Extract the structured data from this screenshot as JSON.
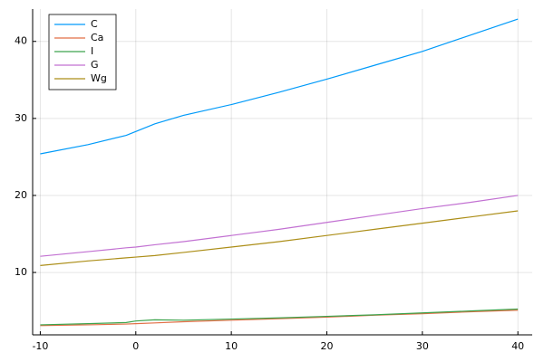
{
  "chart_data": {
    "type": "line",
    "x": [
      -10,
      -5,
      -1,
      0,
      2,
      5,
      10,
      15,
      20,
      25,
      30,
      35,
      40
    ],
    "series": [
      {
        "name": "C",
        "color": "#009af9",
        "values": [
          25.4,
          26.6,
          27.8,
          28.3,
          29.3,
          30.4,
          31.8,
          33.4,
          35.1,
          36.9,
          38.7,
          40.8,
          42.9
        ]
      },
      {
        "name": "Ca",
        "color": "#e26f46",
        "values": [
          3.1,
          3.2,
          3.3,
          3.35,
          3.45,
          3.6,
          3.8,
          4.0,
          4.2,
          4.45,
          4.65,
          4.9,
          5.1
        ]
      },
      {
        "name": "I",
        "color": "#3da44d",
        "values": [
          3.2,
          3.35,
          3.5,
          3.7,
          3.85,
          3.8,
          3.95,
          4.1,
          4.3,
          4.5,
          4.75,
          5.0,
          5.25
        ]
      },
      {
        "name": "G",
        "color": "#c271d2",
        "values": [
          12.1,
          12.7,
          13.2,
          13.3,
          13.6,
          14.0,
          14.8,
          15.6,
          16.5,
          17.4,
          18.3,
          19.1,
          20.0
        ]
      },
      {
        "name": "Wg",
        "color": "#ac8e18",
        "values": [
          10.9,
          11.5,
          11.9,
          12.0,
          12.2,
          12.6,
          13.3,
          14.0,
          14.8,
          15.6,
          16.4,
          17.2,
          18.0
        ]
      }
    ],
    "xlim": [
      -10.8,
      41.5
    ],
    "xticks": [
      -10,
      0,
      10,
      20,
      30,
      40
    ],
    "ylim": [
      1.9,
      44.2
    ],
    "yticks": [
      10,
      20,
      30,
      40
    ],
    "grid": true,
    "legend": "top-left"
  }
}
